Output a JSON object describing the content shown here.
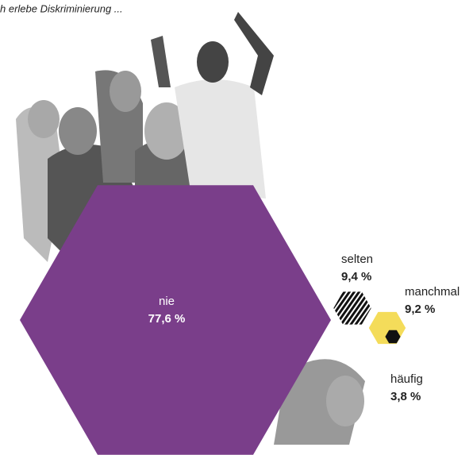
{
  "chart_data": {
    "type": "hexagon",
    "title": "h erlebe Diskriminierung ...",
    "categories": [
      "nie",
      "selten",
      "manchmal",
      "häufig"
    ],
    "values": [
      77.6,
      9.4,
      9.2,
      3.8
    ],
    "value_labels": [
      "77,6 %",
      "9,4 %",
      "9,2 %",
      "3,8 %"
    ],
    "colors": [
      "#7a3e8a",
      "#111111",
      "#f4dc5a",
      "#111111"
    ]
  }
}
